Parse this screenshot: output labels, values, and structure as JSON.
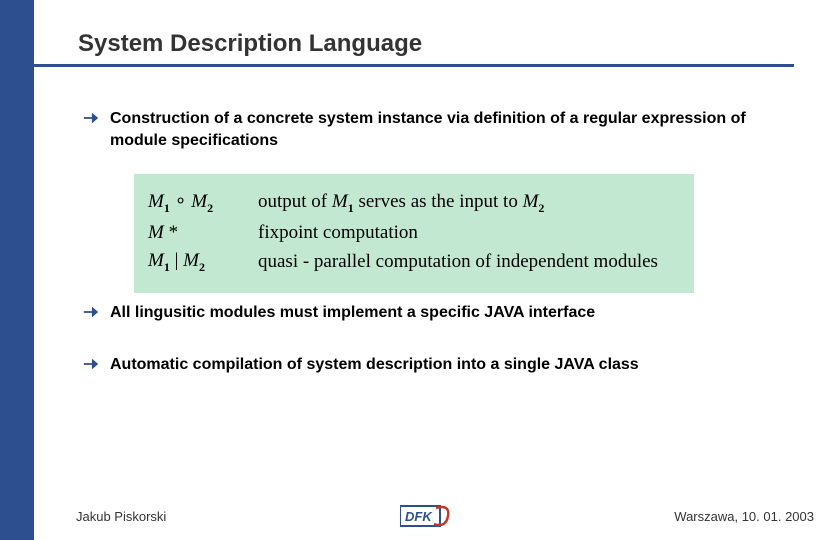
{
  "colors": {
    "accent": "#2d4f8f",
    "rule": "#2d4f8f",
    "math_bg": "#c3e8d1",
    "text": "#000000",
    "title": "#333333"
  },
  "title": "System Description Language",
  "bullets": [
    "Construction of a concrete system instance via definition of a regular expression of module specifications",
    "All lingusitic modules must implement a specific JAVA interface",
    "Automatic compilation of system description into a single JAVA class"
  ],
  "math": {
    "rows": [
      {
        "left_html": "M<span class='sub'>1</span><span class='op'> ∘ </span>M<span class='sub'>2</span>",
        "right_html": "output of <span class='mi'>M</span><span class='sub'>1</span> serves as the input to <span class='mi'>M</span><span class='sub'>2</span>"
      },
      {
        "left_html": "M<span class='op'> *</span>",
        "right_html": "fixpoint computation"
      },
      {
        "left_html": "M<span class='sub'>1</span><span class='op'> | </span>M<span class='sub'>2</span>",
        "right_html": "quasi - parallel computation of independent modules"
      }
    ]
  },
  "footer": {
    "author": "Jakub Piskorski",
    "place_date": "Warszawa, 10. 01. 2003",
    "logo_text": "DFKI"
  }
}
